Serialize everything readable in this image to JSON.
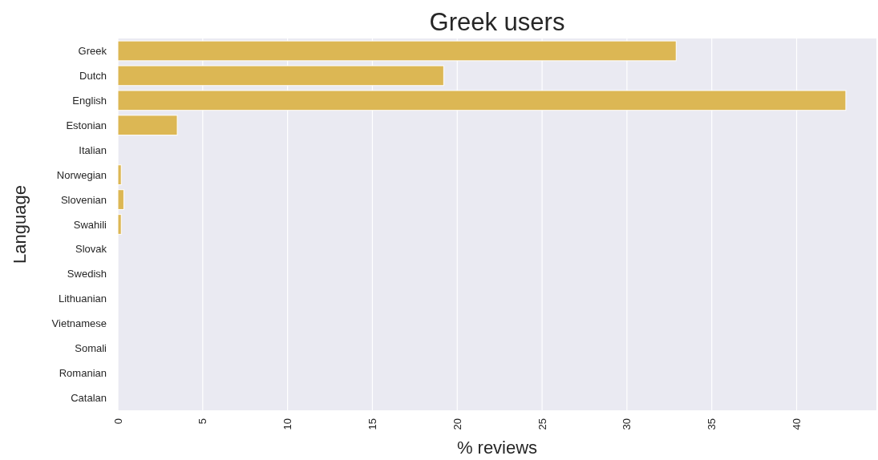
{
  "chart_data": {
    "type": "bar",
    "orientation": "horizontal",
    "title": "Greek users",
    "xlabel": "% reviews",
    "ylabel": "Language",
    "categories": [
      "Greek",
      "Dutch",
      "English",
      "Estonian",
      "Italian",
      "Norwegian",
      "Slovenian",
      "Swahili",
      "Slovak",
      "Swedish",
      "Lithuanian",
      "Vietnamese",
      "Somali",
      "Romanian",
      "Catalan"
    ],
    "values": [
      32.9,
      19.2,
      42.9,
      3.5,
      0,
      0.2,
      0.35,
      0.2,
      0,
      0,
      0,
      0,
      0,
      0,
      0
    ],
    "color": "#dcb754",
    "xlim": [
      0,
      44.7
    ],
    "xticks": [
      0,
      5,
      10,
      15,
      20,
      25,
      30,
      35,
      40
    ],
    "grid": "x"
  }
}
